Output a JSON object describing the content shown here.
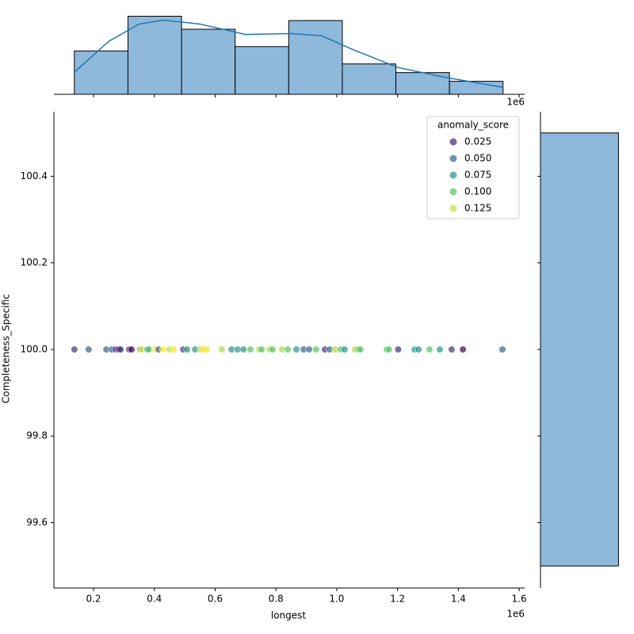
{
  "chart_data": {
    "type": "jointplot",
    "x_label": "longest",
    "y_label": "Completeness_Specific",
    "x_offset_label": "1e6",
    "xlim": [
      0.0696,
      1.618
    ],
    "ylim": [
      99.449,
      100.549
    ],
    "xticks": [
      0.2,
      0.4,
      0.6,
      0.8,
      {
        "value": 1,
        "label": "1.0"
      },
      1.2,
      1.4,
      1.6
    ],
    "yticks": [
      99.6,
      99.8,
      {
        "value": 100,
        "label": "100.0"
      },
      100.2,
      100.4
    ],
    "legend": {
      "title": "anomaly_score",
      "position": "upper right",
      "entries": [
        0.025,
        {
          "value": 0.05,
          "label": "0.050"
        },
        0.075,
        {
          "value": 0.1,
          "label": "0.100"
        },
        0.125
      ]
    },
    "scatter": {
      "x": [
        0.137,
        0.184,
        0.242,
        0.26,
        0.273,
        0.283,
        0.289,
        0.317,
        0.325,
        0.354,
        0.359,
        0.377,
        0.382,
        0.403,
        0.414,
        0.429,
        0.45,
        0.463,
        0.495,
        0.508,
        0.534,
        0.552,
        0.562,
        0.573,
        0.622,
        0.654,
        0.674,
        0.693,
        0.716,
        0.745,
        0.753,
        0.779,
        0.789,
        0.82,
        0.839,
        0.867,
        0.891,
        0.909,
        0.932,
        0.961,
        0.977,
        0.995,
        1.013,
        1.026,
        1.06,
        1.071,
        1.078,
        1.164,
        1.172,
        1.202,
        1.256,
        1.269,
        1.305,
        1.339,
        1.378,
        1.415,
        1.545
      ],
      "y": [
        100,
        100,
        100,
        100,
        100,
        100,
        100,
        100,
        100,
        100,
        100,
        100,
        100,
        100,
        100,
        100,
        100,
        100,
        100,
        100,
        100,
        100,
        100,
        100,
        100,
        100,
        100,
        100,
        100,
        100,
        100,
        100,
        100,
        100,
        100,
        100,
        100,
        100,
        100,
        100,
        100,
        100,
        100,
        100,
        100,
        100,
        100,
        100,
        100,
        100,
        100,
        100,
        100,
        100,
        100,
        100,
        100
      ],
      "hue": [
        0.03,
        0.05,
        0.05,
        0.05,
        0.03,
        0.01,
        0.03,
        0.03,
        0.01,
        0.075,
        0.135,
        0.075,
        0.1,
        0.135,
        0.05,
        0.135,
        0.12,
        0.135,
        0.03,
        0.075,
        0.075,
        0.12,
        0.135,
        0.135,
        0.12,
        0.075,
        0.075,
        0.075,
        0.1,
        0.12,
        0.1,
        0.12,
        0.1,
        0.12,
        0.1,
        0.075,
        0.05,
        0.05,
        0.1,
        0.03,
        0.05,
        0.12,
        0.1,
        0.075,
        0.12,
        0.1,
        0.1,
        0.1,
        0.1,
        0.03,
        0.075,
        0.075,
        0.1,
        0.075,
        0.03,
        0.01,
        0.05
      ]
    },
    "x_hist": {
      "color": "#8fb9db",
      "line_color": "#1f77b4",
      "ylim": [
        0,
        19
      ],
      "bins": [
        0.137,
        0.3133,
        0.4895,
        0.6658,
        0.842,
        1.0183,
        1.1945,
        1.3708,
        1.547
      ],
      "counts": [
        10,
        18,
        15,
        11,
        17,
        7,
        5,
        3
      ],
      "kde_x": [
        0.137,
        0.25,
        0.35,
        0.43,
        0.55,
        0.7,
        0.85,
        0.95,
        1.05,
        1.2,
        1.35,
        1.547
      ],
      "kde_y": [
        5.1,
        12.2,
        16.2,
        17.1,
        16.2,
        13.8,
        14,
        13.5,
        10.4,
        6.2,
        4,
        1.6
      ]
    },
    "y_hist": {
      "color": "#8fb9db",
      "xlim": [
        0,
        90
      ],
      "bins": [
        99.5,
        100.5
      ],
      "counts": [
        86
      ]
    }
  }
}
